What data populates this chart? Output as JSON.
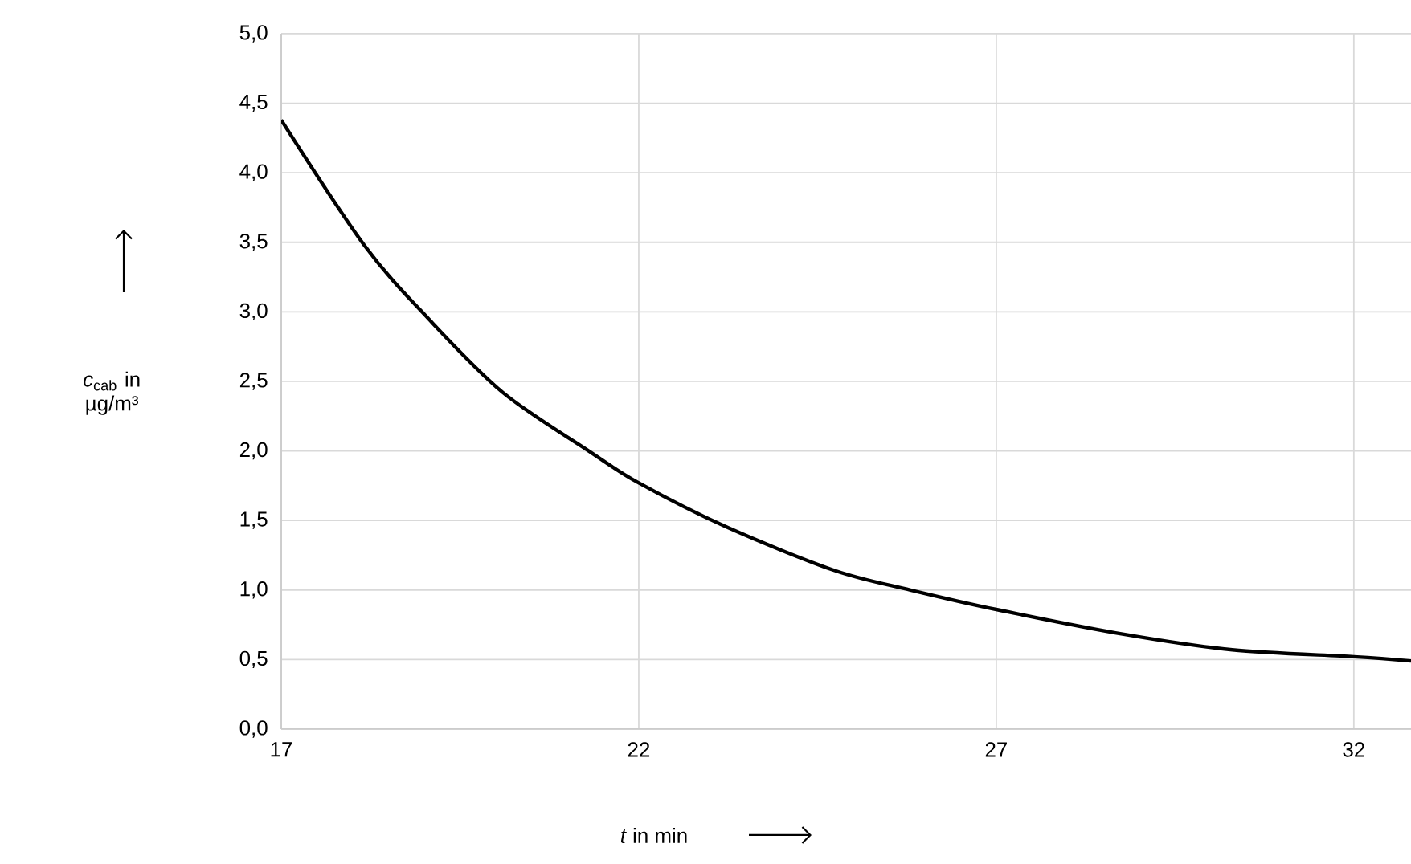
{
  "chart_data": {
    "type": "line",
    "xlabel": "*t* in min",
    "ylabel": "*c*$_{cab}$ in µg/m³",
    "xlim": [
      17,
      32.8
    ],
    "ylim": [
      0,
      5
    ],
    "xticks": [
      17,
      22,
      27,
      32
    ],
    "yticks": [
      {
        "value": 0,
        "label": "0,0"
      },
      {
        "value": 0.5,
        "label": "0,5"
      },
      {
        "value": 1,
        "label": "1,0"
      },
      {
        "value": 1.5,
        "label": "1,5"
      },
      {
        "value": 2,
        "label": "2,0"
      },
      {
        "value": 2.5,
        "label": "2,5"
      },
      {
        "value": 3,
        "label": "3,0"
      },
      {
        "value": 3.5,
        "label": "3,5"
      },
      {
        "value": 4,
        "label": "4,0"
      },
      {
        "value": 4.5,
        "label": "4,5"
      },
      {
        "value": 5,
        "label": "5,0"
      }
    ],
    "grid": true,
    "series": [
      {
        "color": "#000000",
        "x": [
          17,
          18.16,
          19.06,
          20.1,
          21.3,
          22,
          23.24,
          24.74,
          25.8,
          27,
          28.8,
          30.3,
          32,
          32.8
        ],
        "values": [
          4.38,
          3.48,
          2.95,
          2.42,
          2.0,
          1.77,
          1.45,
          1.14,
          1.0,
          0.86,
          0.68,
          0.57,
          0.52,
          0.49
        ]
      }
    ]
  }
}
